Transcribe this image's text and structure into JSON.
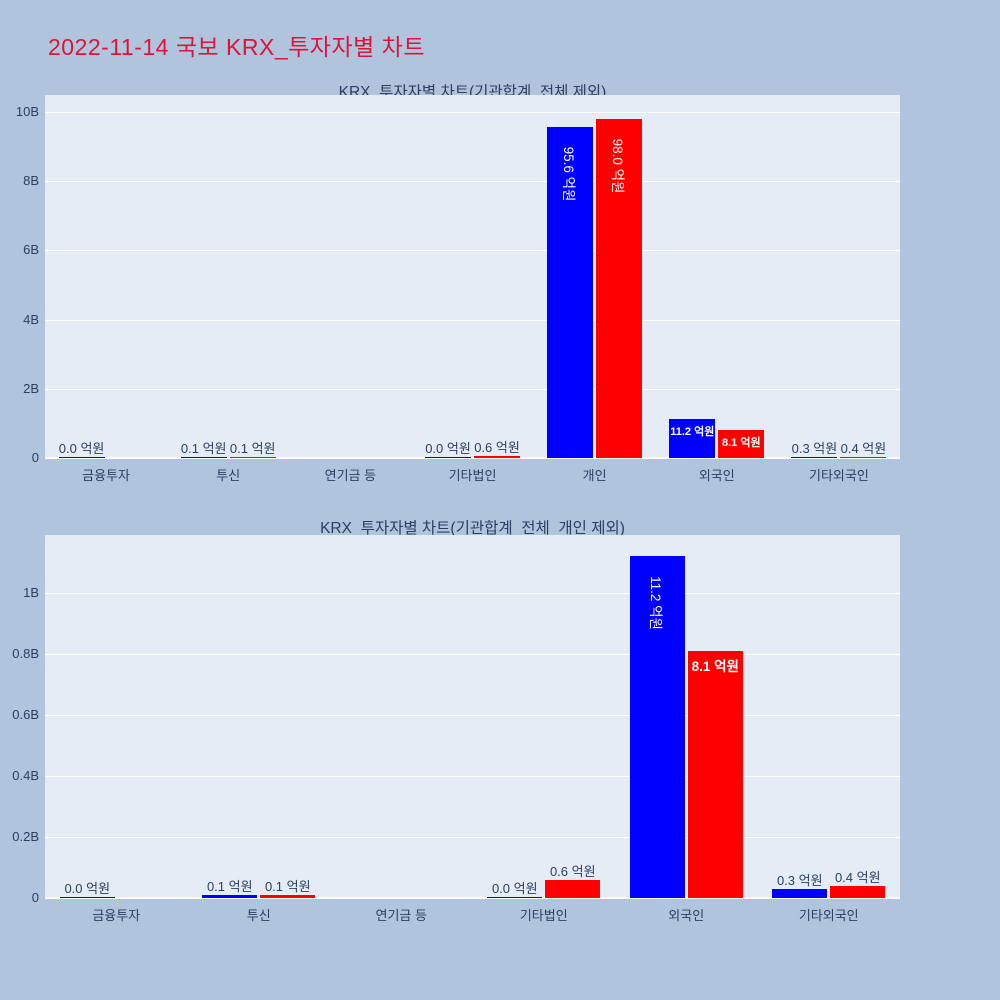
{
  "page": {
    "title": "2022-11-14 국보 KRX_투자자별 차트",
    "title_color": "#dc143c",
    "background_color": "#b0c4de"
  },
  "colors": {
    "blue_series": "#0000ff",
    "red_series": "#ff0000",
    "plot_background": "#e5ecf6",
    "gridline": "#ffffff",
    "axis_text": "#2a3f5f"
  },
  "chart_data": [
    {
      "type": "bar",
      "title": "KRX_투자자별 차트(기관합계_전체 제외)",
      "unit": "억원",
      "legend": "none",
      "grid": true,
      "categories": [
        "금융투자",
        "투신",
        "연기금 등",
        "기타법인",
        "개인",
        "외국인",
        "기타외국인"
      ],
      "series": [
        {
          "name": "blue",
          "color": "#0000ff",
          "values": [
            0.0,
            0.1,
            null,
            0.0,
            95.6,
            11.2,
            0.3
          ],
          "label_modes": [
            "outside",
            "outside",
            null,
            "outside",
            "rotated",
            "inside",
            "outside"
          ]
        },
        {
          "name": "red",
          "color": "#ff0000",
          "values": [
            null,
            0.1,
            null,
            0.6,
            98.0,
            8.1,
            0.4
          ],
          "label_modes": [
            null,
            "outside",
            null,
            "outside",
            "rotated",
            "inside",
            "outside"
          ]
        }
      ],
      "yticks": [
        {
          "v": 0,
          "label": "0"
        },
        {
          "v": 2,
          "label": "2B"
        },
        {
          "v": 4,
          "label": "4B"
        },
        {
          "v": 6,
          "label": "6B"
        },
        {
          "v": 8,
          "label": "8B"
        },
        {
          "v": 10,
          "label": "10B"
        }
      ],
      "ylim_b": [
        0,
        10.49
      ]
    },
    {
      "type": "bar",
      "title": "KRX_투자자별 차트(기관합계_전체_개인 제외)",
      "unit": "억원",
      "legend": "none",
      "grid": true,
      "categories": [
        "금융투자",
        "투신",
        "연기금 등",
        "기타법인",
        "외국인",
        "기타외국인"
      ],
      "series": [
        {
          "name": "blue",
          "color": "#0000ff",
          "values": [
            0.0,
            0.1,
            null,
            0.0,
            11.2,
            0.3
          ],
          "label_modes": [
            "outside",
            "outside",
            null,
            "outside",
            "rotated",
            "outside"
          ]
        },
        {
          "name": "red",
          "color": "#ff0000",
          "values": [
            null,
            0.1,
            null,
            0.6,
            8.1,
            0.4
          ],
          "label_modes": [
            null,
            "outside",
            null,
            "outside",
            "inside",
            "outside"
          ]
        }
      ],
      "yticks": [
        {
          "v": 0,
          "label": "0"
        },
        {
          "v": 0.2,
          "label": "0.2B"
        },
        {
          "v": 0.4,
          "label": "0.4B"
        },
        {
          "v": 0.6,
          "label": "0.6B"
        },
        {
          "v": 0.8,
          "label": "0.8B"
        },
        {
          "v": 1,
          "label": "1B"
        }
      ],
      "ylim_b": [
        0,
        1.19
      ]
    }
  ]
}
